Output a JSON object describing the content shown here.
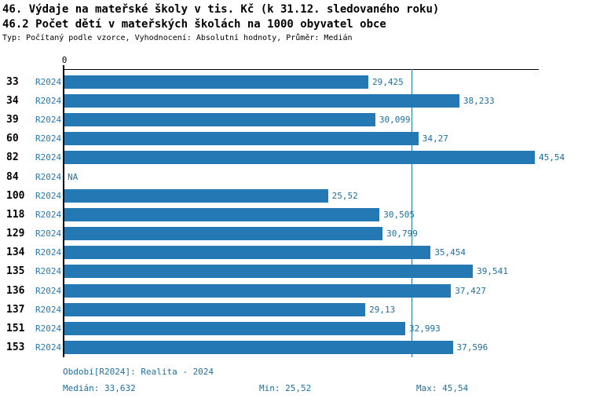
{
  "header": {
    "title_line1": "46. Výdaje na mateřské školy v tis. Kč (k 31.12. sledovaného roku)",
    "title_line2": "46.2 Počet dětí v mateřských školách na 1000 obyvatel obce",
    "subtitle": "Typ: Počítaný podle vzorce, Vyhodnocení: Absolutní hodnoty, Průměr: Medián"
  },
  "chart_data": {
    "type": "bar",
    "orientation": "horizontal",
    "title": "46. Výdaje na mateřské školy v tis. Kč (k 31.12. sledovaného roku)",
    "subtitle": "46.2 Počet dětí v mateřských školách na 1000 obyvatel obce",
    "axis": {
      "zero_label": "0",
      "xmin": 0,
      "xmax_approx": 45.9,
      "grid": false
    },
    "median_value": 33.632,
    "series_period": "R2024",
    "rows": [
      {
        "category": "33",
        "period": "R2024",
        "value": 29.425,
        "label": "29,425"
      },
      {
        "category": "34",
        "period": "R2024",
        "value": 38.233,
        "label": "38,233"
      },
      {
        "category": "39",
        "period": "R2024",
        "value": 30.099,
        "label": "30,099"
      },
      {
        "category": "60",
        "period": "R2024",
        "value": 34.27,
        "label": "34,27"
      },
      {
        "category": "82",
        "period": "R2024",
        "value": 45.54,
        "label": "45,54"
      },
      {
        "category": "84",
        "period": "R2024",
        "value": null,
        "label": "NA"
      },
      {
        "category": "100",
        "period": "R2024",
        "value": 25.52,
        "label": "25,52"
      },
      {
        "category": "118",
        "period": "R2024",
        "value": 30.505,
        "label": "30,505"
      },
      {
        "category": "129",
        "period": "R2024",
        "value": 30.799,
        "label": "30,799"
      },
      {
        "category": "134",
        "period": "R2024",
        "value": 35.454,
        "label": "35,454"
      },
      {
        "category": "135",
        "period": "R2024",
        "value": 39.541,
        "label": "39,541"
      },
      {
        "category": "136",
        "period": "R2024",
        "value": 37.427,
        "label": "37,427"
      },
      {
        "category": "137",
        "period": "R2024",
        "value": 29.13,
        "label": "29,13"
      },
      {
        "category": "151",
        "period": "R2024",
        "value": 32.993,
        "label": "32,993"
      },
      {
        "category": "153",
        "period": "R2024",
        "value": 37.596,
        "label": "37,596"
      }
    ]
  },
  "footer": {
    "period_label": "Období[R2024]: Realita - 2024",
    "median_label": "Medián: 33,632",
    "min_label": "Min: 25,52",
    "max_label": "Max: 45,54"
  },
  "colors": {
    "bar": "#2478b4",
    "accent_text": "#1d6f9f",
    "median_line": "#2478b4",
    "axis": "#000000"
  }
}
